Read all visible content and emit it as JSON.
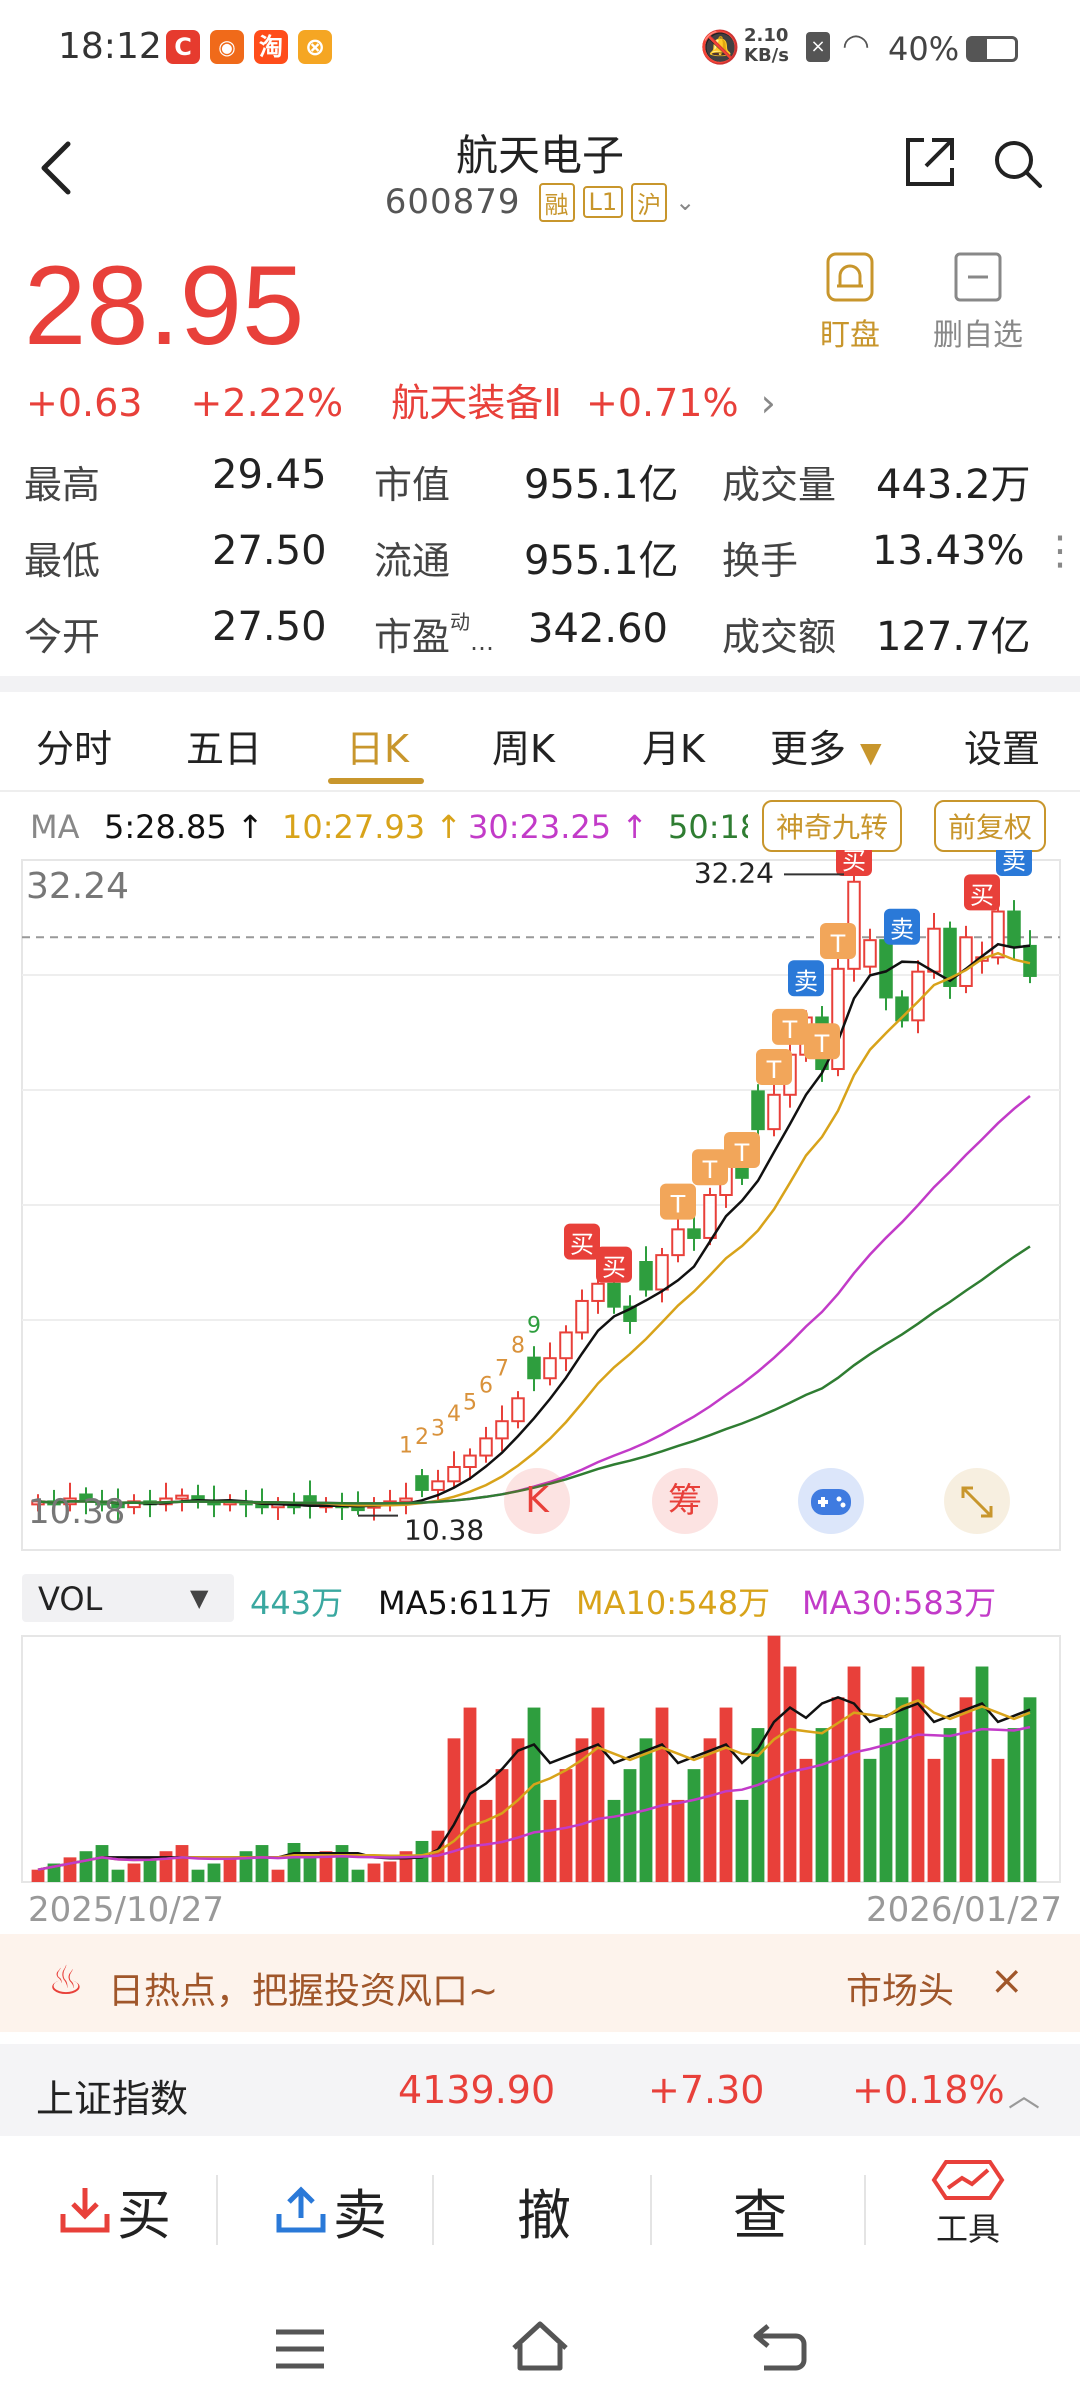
{
  "status_bar": {
    "time": "18:12",
    "net_speed_top": "2.10",
    "net_speed_bottom": "KB/s",
    "battery": "40%"
  },
  "header": {
    "title": "航天电子",
    "code": "600879",
    "badges": [
      "融",
      "L1",
      "沪"
    ]
  },
  "quote": {
    "price": "28.95",
    "change": "+0.63",
    "change_pct": "+2.22%",
    "sector": "航天装备Ⅱ",
    "sector_pct": "+0.71%",
    "watch_label": "盯盘",
    "remove_label": "删自选",
    "grid": [
      {
        "l1": "最高",
        "v1": "29.45",
        "l2": "市值",
        "v2": "955.1亿",
        "l3": "成交量",
        "v3": "443.2万"
      },
      {
        "l1": "最低",
        "v1": "27.50",
        "l2": "流通",
        "v2": "955.1亿",
        "l3": "换手",
        "v3": "13.43%"
      },
      {
        "l1": "今开",
        "v1": "27.50",
        "l2": "市盈",
        "l2sup": "动",
        "v2": "342.60",
        "l3": "成交额",
        "v3": "127.7亿"
      }
    ]
  },
  "tabs": [
    "分时",
    "五日",
    "日K",
    "周K",
    "月K",
    "更多",
    "设置"
  ],
  "ma_bar": {
    "ma": "MA",
    "ma5": "5:28.85 ↑",
    "ma10": "10:27.93 ↑",
    "ma30": "30:23.25 ↑",
    "ma50": "50:18",
    "chip1": "神奇九转",
    "chip2": "前复权"
  },
  "chart": {
    "high_label": "32.24",
    "high_marker": "32.24",
    "low_label": "10.38",
    "left_low": "10.38",
    "buy": "买",
    "sell": "卖",
    "t_mark": "T"
  },
  "vol_bar": {
    "select": "VOL",
    "vol": "443万",
    "ma5": "MA5:611万",
    "ma10": "MA10:548万",
    "ma30": "MA30:583万"
  },
  "dates": {
    "start": "2025/10/27",
    "end": "2026/01/27"
  },
  "banner": {
    "text": "日热点，把握投资风口~",
    "link": "市场头"
  },
  "index": {
    "name": "上证指数",
    "value": "4139.90",
    "change": "+7.30",
    "pct": "+0.18%"
  },
  "actions": {
    "buy": "买",
    "sell": "卖",
    "cancel": "撤",
    "query": "查",
    "tools": "工具"
  },
  "colors": {
    "up": "#e8403a",
    "down": "#2e9e3e",
    "accent": "#c8962c",
    "ma5": "#111111",
    "ma10": "#d8a31a",
    "ma30": "#c23bc8",
    "ma50": "#2f7d32"
  },
  "chart_data": {
    "type": "candlestick",
    "y_axis_top_label": "32.24",
    "max_marker": "32.24",
    "min_marker": "10.38",
    "x_range": [
      "2025/10/27",
      "2026/01/27"
    ],
    "closes_approx": [
      10.6,
      10.5,
      10.7,
      10.6,
      10.5,
      10.4,
      10.6,
      10.5,
      10.7,
      10.8,
      10.6,
      10.5,
      10.6,
      10.5,
      10.4,
      10.5,
      10.4,
      10.45,
      10.5,
      10.4,
      10.38,
      10.5,
      10.6,
      10.7,
      11.0,
      11.3,
      11.8,
      12.2,
      12.8,
      13.4,
      14.2,
      14.9,
      15.6,
      16.5,
      17.6,
      18.2,
      17.4,
      16.9,
      18.0,
      19.2,
      20.1,
      19.8,
      21.3,
      22.4,
      21.9,
      23.6,
      24.8,
      26.2,
      27.5,
      25.7,
      29.2,
      32.24,
      30.2,
      28.2,
      27.4,
      29.1,
      30.6,
      28.6,
      30.3,
      29.6,
      31.2,
      30.0,
      28.95
    ]
  },
  "volume_data": {
    "unit": "万",
    "latest": 443,
    "ma5": 611,
    "ma10": 548,
    "ma30": 583
  }
}
